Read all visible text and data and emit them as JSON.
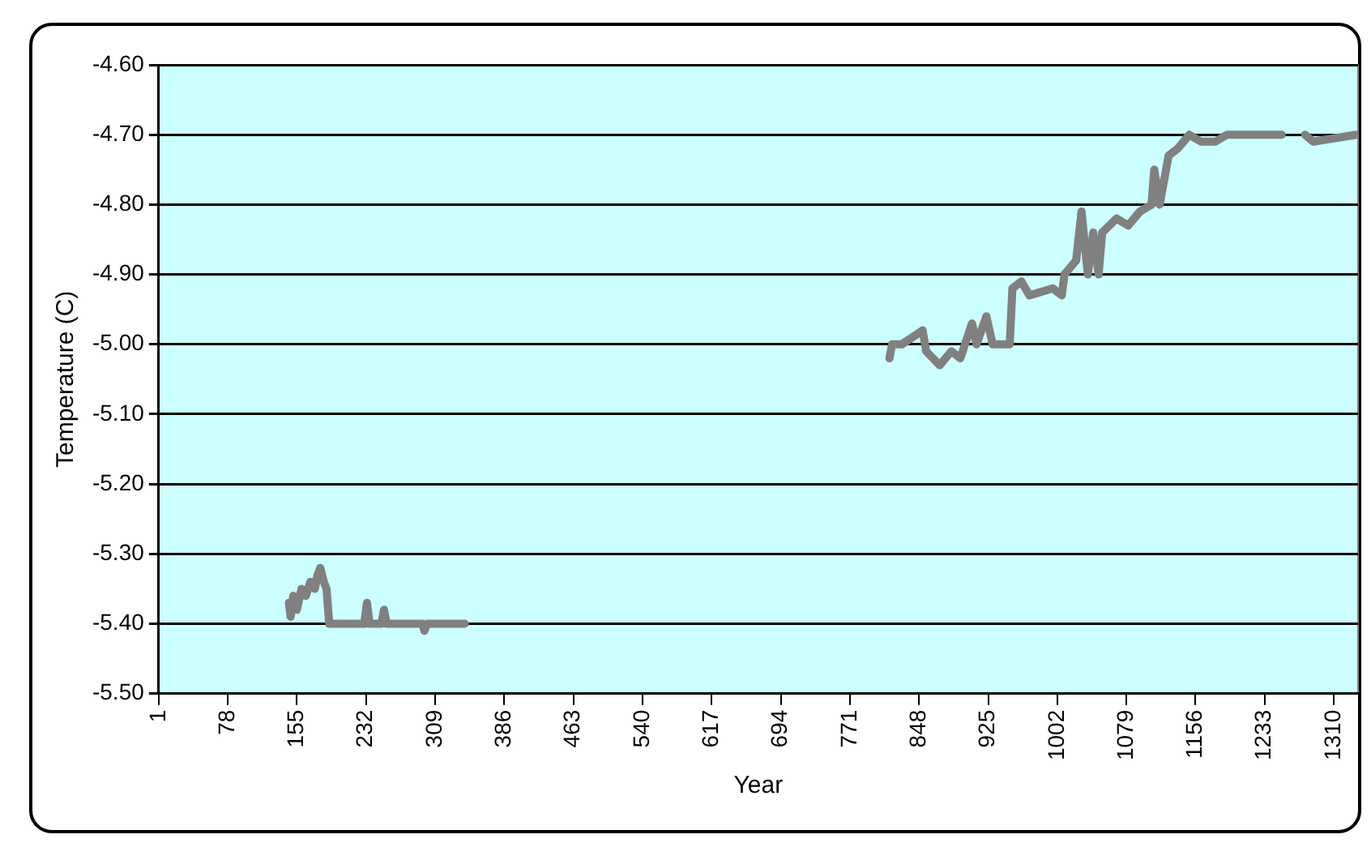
{
  "chart_data": {
    "type": "line",
    "xlabel": "Year",
    "ylabel": "Temperature (C)",
    "x": [
      146,
      148,
      151,
      155,
      160,
      165,
      170,
      175,
      178,
      181,
      185,
      188,
      191,
      230,
      233,
      236,
      249,
      252,
      255,
      295,
      297,
      300,
      342,
      600,
      815,
      818,
      829,
      852,
      856,
      871,
      884,
      894,
      907,
      912,
      923,
      930,
      949,
      952,
      962,
      971,
      997,
      1007,
      1010,
      1023,
      1029,
      1036,
      1042,
      1048,
      1052,
      1068,
      1081,
      1094,
      1107,
      1110,
      1116,
      1126,
      1136,
      1149,
      1162,
      1178,
      1191,
      1252,
      1265,
      1278,
      1287,
      1335
    ],
    "series": [
      {
        "color": "#808080",
        "values": [
          -5.37,
          -5.39,
          -5.36,
          -5.38,
          -5.35,
          -5.36,
          -5.34,
          -5.35,
          -5.33,
          -5.32,
          -5.34,
          -5.35,
          -5.4,
          -5.4,
          -5.37,
          -5.4,
          -5.4,
          -5.38,
          -5.4,
          -5.4,
          -5.41,
          -5.4,
          -5.4,
          null,
          -5.02,
          -5.0,
          -5.0,
          -4.98,
          -5.01,
          -5.03,
          -5.01,
          -5.02,
          -4.97,
          -5.0,
          -4.96,
          -5.0,
          -5.0,
          -4.92,
          -4.91,
          -4.93,
          -4.92,
          -4.93,
          -4.9,
          -4.88,
          -4.81,
          -4.9,
          -4.84,
          -4.9,
          -4.84,
          -4.82,
          -4.83,
          -4.81,
          -4.8,
          -4.75,
          -4.8,
          -4.73,
          -4.72,
          -4.7,
          -4.71,
          -4.71,
          -4.7,
          -4.7,
          null,
          -4.7,
          -4.71,
          -4.7
        ]
      }
    ],
    "xlim": [
      1,
      1337
    ],
    "xticks": [
      1,
      78,
      155,
      232,
      309,
      386,
      463,
      540,
      617,
      694,
      771,
      848,
      925,
      1002,
      1079,
      1156,
      1233,
      1310
    ],
    "ylim": [
      -5.5,
      -4.6
    ],
    "yticks": [
      {
        "value": -5.5,
        "label": "-5.50"
      },
      {
        "value": -5.4,
        "label": "-5.40"
      },
      {
        "value": -5.3,
        "label": "-5.30"
      },
      {
        "value": -5.2,
        "label": "-5.20"
      },
      {
        "value": -5.1,
        "label": "-5.10"
      },
      {
        "value": -5.0,
        "label": "-5.00"
      },
      {
        "value": -4.9,
        "label": "-4.90"
      },
      {
        "value": -4.8,
        "label": "-4.80"
      },
      {
        "value": -4.7,
        "label": "-4.70"
      },
      {
        "value": -4.6,
        "label": "-4.60"
      }
    ],
    "grid": "y",
    "legend": false,
    "marker": "none",
    "line_style": "solid"
  }
}
